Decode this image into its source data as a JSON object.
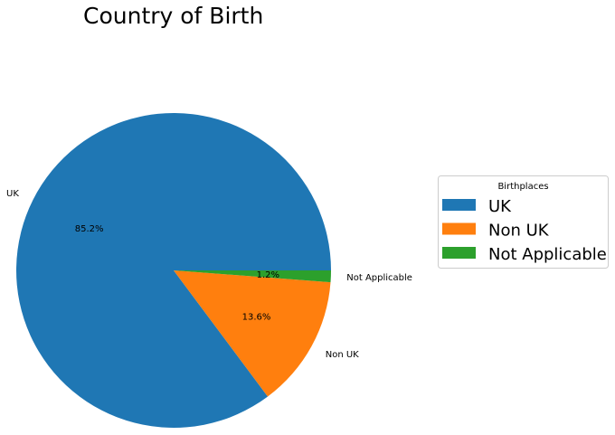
{
  "chart_data": {
    "type": "pie",
    "title": "Country of Birth",
    "categories": [
      "UK",
      "Non UK",
      "Not Applicable"
    ],
    "values": [
      85.2,
      13.6,
      1.2
    ],
    "percent_labels": [
      "85.2%",
      "13.6%",
      "1.2%"
    ],
    "colors": [
      "#1f77b4",
      "#ff7f0e",
      "#2ca02c"
    ],
    "start_angle_deg": 0,
    "direction": "counterclockwise",
    "legend": {
      "title": "Birthplaces",
      "entries": [
        "UK",
        "Non UK",
        "Not Applicable"
      ],
      "placement": "right"
    }
  }
}
